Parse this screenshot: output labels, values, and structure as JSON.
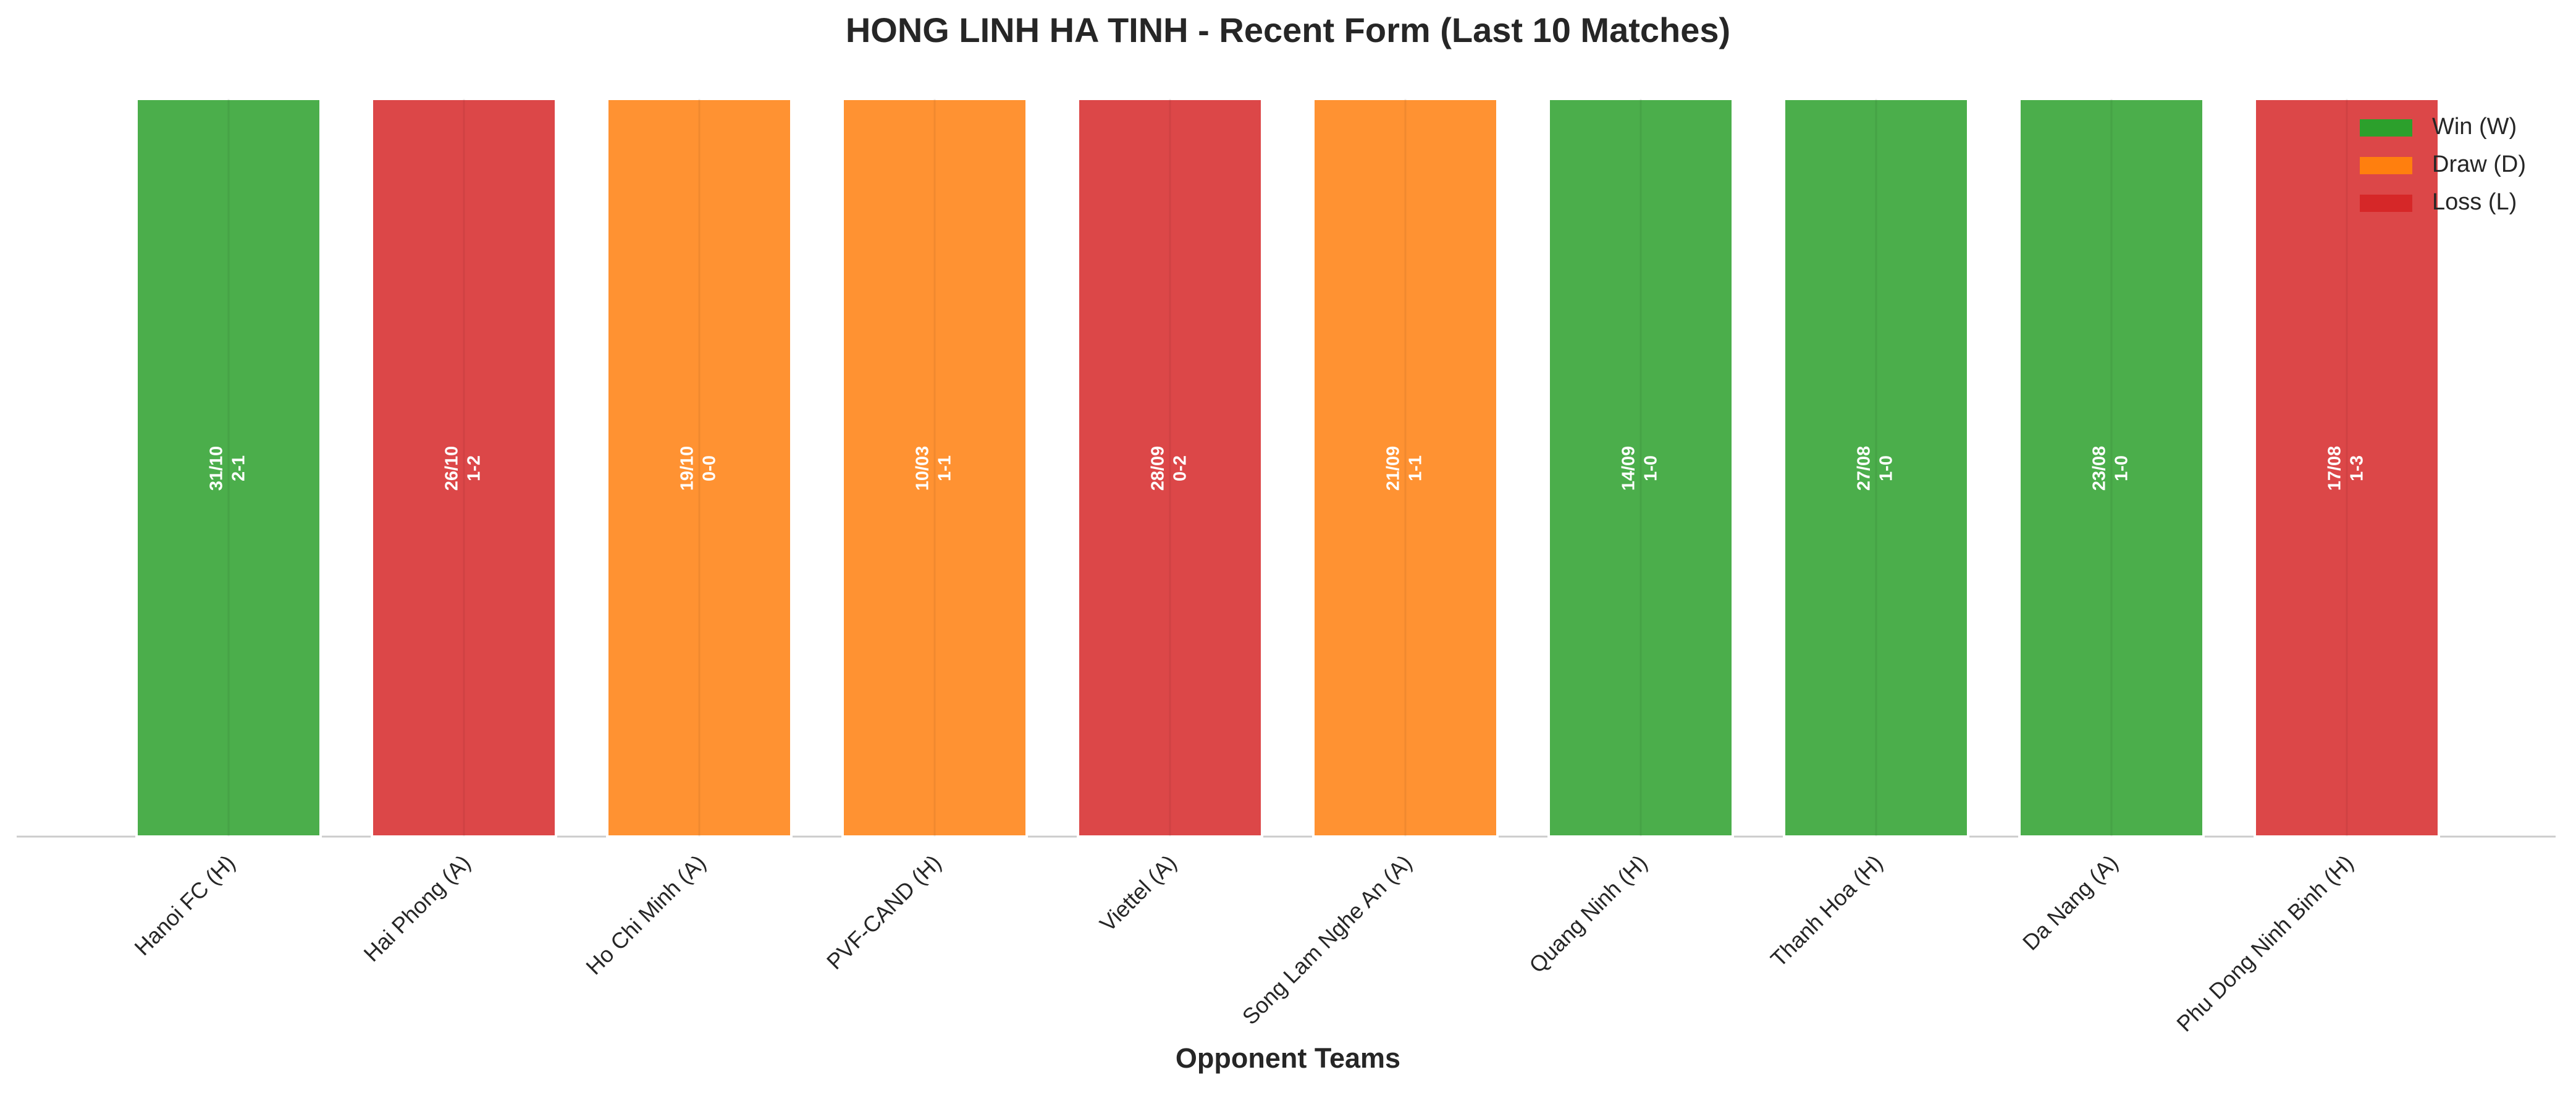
{
  "chart_data": {
    "type": "bar",
    "title": "HONG LINH HA TINH - Recent Form (Last 10 Matches)",
    "x_label": "Opponent Teams",
    "categories": [
      "Hanoi FC (H)",
      "Hai Phong (A)",
      "Ho Chi Minh (A)",
      "PVF-CAND (H)",
      "Viettel (A)",
      "Song Lam Nghe An (A)",
      "Quang Ninh (H)",
      "Thanh Hoa (H)",
      "Da Nang (A)",
      "Phu Dong Ninh Binh (H)"
    ],
    "dates": [
      "31/10",
      "26/10",
      "19/10",
      "10/03",
      "28/09",
      "21/09",
      "14/09",
      "27/08",
      "23/08",
      "17/08"
    ],
    "scores": [
      "2-1",
      "1-2",
      "0-0",
      "1-1",
      "0-2",
      "1-1",
      "1-0",
      "1-0",
      "1-0",
      "1-3"
    ],
    "series": [
      {
        "name": "Win (W)",
        "color": "#2ca02c",
        "values": [
          1,
          null,
          null,
          null,
          null,
          null,
          1,
          1,
          1,
          null
        ]
      },
      {
        "name": "Draw (D)",
        "color": "#ff7f0e",
        "values": [
          null,
          null,
          1,
          1,
          null,
          1,
          null,
          null,
          null,
          null
        ]
      },
      {
        "name": "Loss (L)",
        "color": "#d62728",
        "values": [
          null,
          1,
          null,
          null,
          1,
          null,
          null,
          null,
          null,
          1
        ]
      }
    ],
    "ylim": [
      0,
      1
    ],
    "legend": "upper right"
  }
}
